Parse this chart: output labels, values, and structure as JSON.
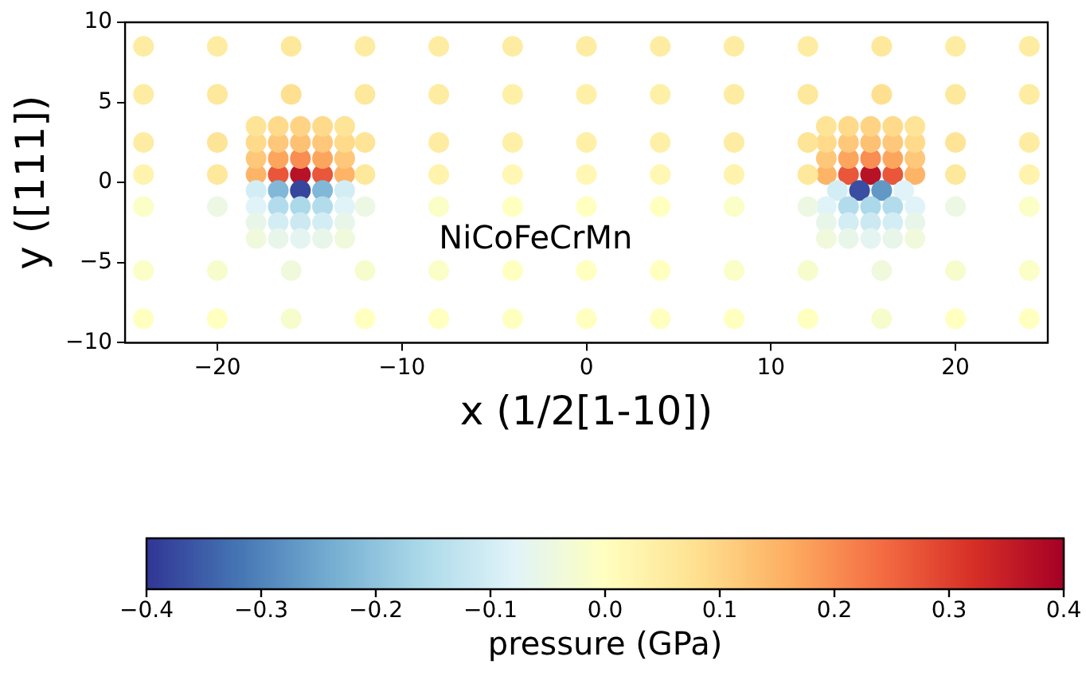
{
  "chart_data": {
    "type": "scatter",
    "xlabel": "x (1/2[1-10])",
    "ylabel": "y ([111])",
    "clabel": "pressure (GPa)",
    "xlim": [
      -25,
      25
    ],
    "ylim": [
      -10,
      10
    ],
    "xticks": [
      -20,
      -10,
      0,
      10,
      20
    ],
    "yticks": [
      -10,
      -5,
      0,
      5,
      10
    ],
    "clim": [
      -0.4,
      0.4
    ],
    "cticks": [
      -0.4,
      -0.3,
      -0.2,
      -0.1,
      {
        "value": 0,
        "label": "0.0"
      },
      0.1,
      0.2,
      0.3,
      0.4
    ],
    "legend": false,
    "marker": "circle",
    "annotations": [
      "NiCoFeCrMn"
    ],
    "series": [
      {
        "x": [
          -17.9,
          -16.7,
          -15.5,
          -14.3,
          -13.1,
          -17.9,
          -16.7,
          -15.5,
          -14.3,
          -13.1,
          -17.9,
          -16.7,
          -15.5,
          -14.3,
          -13.1,
          -17.9,
          -16.7,
          -15.5,
          -14.3,
          -13.1,
          -17.9,
          -16.7,
          -15.5,
          -14.3,
          -13.1,
          -17.9,
          -16.7,
          -15.5,
          -14.3,
          -13.1,
          -17.9,
          -16.7,
          -15.5,
          -14.3,
          -13.1,
          -17.9,
          -16.7,
          -15.5,
          -14.3,
          -13.1,
          13.0,
          14.2,
          15.4,
          16.6,
          17.8,
          13.0,
          14.2,
          15.4,
          16.6,
          17.8,
          13.0,
          14.2,
          15.4,
          16.6,
          17.8,
          13.0,
          14.2,
          15.4,
          16.6,
          17.8,
          13.6,
          14.8,
          16.0,
          17.2,
          13.0,
          14.2,
          15.4,
          16.6,
          17.8,
          13.0,
          14.2,
          15.4,
          16.6,
          17.8,
          13.0,
          14.2,
          15.4,
          16.6,
          17.8,
          -24,
          -20,
          -16,
          -12,
          -8,
          -4,
          0,
          4,
          8,
          12,
          16,
          20,
          24,
          -24,
          -20,
          -16,
          -12,
          -8,
          -4,
          0,
          4,
          8,
          12,
          16,
          20,
          24,
          -24,
          -20,
          -12,
          -8,
          -4,
          0,
          4,
          8,
          12,
          20,
          24,
          -24,
          -20,
          -12,
          -8,
          -4,
          0,
          4,
          8,
          12,
          20,
          24,
          -24,
          -20,
          -12,
          -8,
          -4,
          0,
          4,
          8,
          12,
          20,
          24,
          -24,
          -20,
          -16,
          -12,
          -8,
          -4,
          0,
          4,
          8,
          12,
          16,
          20,
          24,
          -24,
          -20,
          -16,
          -12,
          -8,
          -4,
          0,
          4,
          8,
          12,
          16,
          20,
          24
        ],
        "values": [
          0.5,
          0.5,
          0.5,
          0.5,
          0.5,
          1.5,
          1.5,
          1.5,
          1.5,
          1.5,
          2.5,
          2.5,
          2.5,
          2.5,
          2.5,
          3.5,
          3.5,
          3.5,
          3.5,
          3.5,
          -0.5,
          -0.5,
          -0.5,
          -0.5,
          -0.5,
          -1.5,
          -1.5,
          -1.5,
          -1.5,
          -1.5,
          -2.5,
          -2.5,
          -2.5,
          -2.5,
          -2.5,
          -3.5,
          -3.5,
          -3.5,
          -3.5,
          -3.5,
          0.5,
          0.5,
          0.5,
          0.5,
          0.5,
          1.5,
          1.5,
          1.5,
          1.5,
          1.5,
          2.5,
          2.5,
          2.5,
          2.5,
          2.5,
          3.5,
          3.5,
          3.5,
          3.5,
          3.5,
          -0.5,
          -0.5,
          -0.5,
          -0.5,
          -1.5,
          -1.5,
          -1.5,
          -1.5,
          -1.5,
          -2.5,
          -2.5,
          -2.5,
          -2.5,
          -2.5,
          -3.5,
          -3.5,
          -3.5,
          -3.5,
          -3.5,
          8.5,
          8.5,
          8.5,
          8.5,
          8.5,
          8.5,
          8.5,
          8.5,
          8.5,
          8.5,
          8.5,
          8.5,
          8.5,
          5.5,
          5.5,
          5.5,
          5.5,
          5.5,
          5.5,
          5.5,
          5.5,
          5.5,
          5.5,
          5.5,
          5.5,
          5.5,
          2.5,
          2.5,
          2.5,
          2.5,
          2.5,
          2.5,
          2.5,
          2.5,
          2.5,
          2.5,
          2.5,
          0.5,
          0.5,
          0.5,
          0.5,
          0.5,
          0.5,
          0.5,
          0.5,
          0.5,
          0.5,
          0.5,
          -1.5,
          -1.5,
          -1.5,
          -1.5,
          -1.5,
          -1.5,
          -1.5,
          -1.5,
          -1.5,
          -1.5,
          -1.5,
          -5.5,
          -5.5,
          -5.5,
          -5.5,
          -5.5,
          -5.5,
          -5.5,
          -5.5,
          -5.5,
          -5.5,
          -5.5,
          -5.5,
          -5.5,
          -8.5,
          -8.5,
          -8.5,
          -8.5,
          -8.5,
          -8.5,
          -8.5,
          -8.5,
          -8.5,
          -8.5,
          -8.5,
          -8.5,
          -8.5
        ],
        "cvalues": [
          0.15,
          0.27,
          0.37,
          0.27,
          0.15,
          0.12,
          0.17,
          0.2,
          0.17,
          0.12,
          0.09,
          0.12,
          0.13,
          0.12,
          0.09,
          0.07,
          0.09,
          0.1,
          0.09,
          0.07,
          -0.1,
          -0.22,
          -0.38,
          -0.22,
          -0.1,
          -0.08,
          -0.15,
          -0.16,
          -0.15,
          -0.08,
          -0.06,
          -0.1,
          -0.11,
          -0.1,
          -0.06,
          -0.04,
          -0.06,
          -0.07,
          -0.06,
          -0.04,
          0.15,
          0.27,
          0.37,
          0.27,
          0.15,
          0.12,
          0.17,
          0.2,
          0.17,
          0.12,
          0.09,
          0.12,
          0.13,
          0.12,
          0.09,
          0.07,
          0.09,
          0.1,
          0.09,
          0.07,
          -0.1,
          -0.37,
          -0.27,
          -0.08,
          -0.08,
          -0.15,
          -0.16,
          -0.15,
          -0.08,
          -0.06,
          -0.1,
          -0.11,
          -0.1,
          -0.06,
          -0.04,
          -0.06,
          -0.07,
          -0.06,
          -0.04,
          0.05,
          0.05,
          0.06,
          0.05,
          0.05,
          0.05,
          0.05,
          0.05,
          0.05,
          0.05,
          0.06,
          0.05,
          0.05,
          0.05,
          0.06,
          0.08,
          0.06,
          0.05,
          0.04,
          0.04,
          0.04,
          0.05,
          0.06,
          0.08,
          0.06,
          0.05,
          0.05,
          0.07,
          0.07,
          0.05,
          0.04,
          0.04,
          0.04,
          0.05,
          0.07,
          0.07,
          0.05,
          0.03,
          0.06,
          0.06,
          0.03,
          0.02,
          0.02,
          0.02,
          0.03,
          0.06,
          0.06,
          0.03,
          -0.01,
          -0.05,
          -0.05,
          -0.01,
          0.0,
          0.0,
          0.0,
          -0.01,
          -0.05,
          -0.05,
          -0.01,
          -0.01,
          -0.02,
          -0.04,
          -0.02,
          -0.01,
          0.0,
          0.0,
          0.0,
          -0.01,
          -0.02,
          -0.04,
          -0.02,
          -0.01,
          0.0,
          0.0,
          -0.02,
          0.0,
          0.0,
          0.0,
          0.0,
          0.0,
          0.0,
          0.0,
          -0.02,
          0.0,
          0.0
        ]
      }
    ]
  }
}
